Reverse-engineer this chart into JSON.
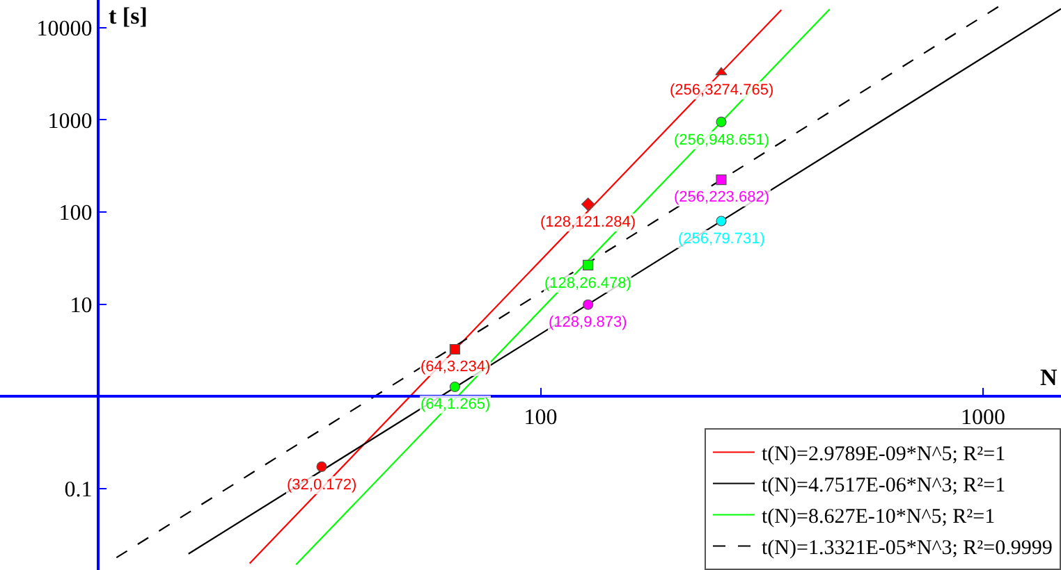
{
  "chart_data": {
    "type": "line",
    "xlabel": "N",
    "ylabel": "t [s]",
    "log": "xy",
    "xlim": [
      6,
      1500
    ],
    "ylim": [
      0.013,
      20000
    ],
    "xticks": [
      100,
      1000
    ],
    "yticks": [
      0.1,
      10,
      100,
      1000,
      10000
    ],
    "grid": false,
    "legend": "bottom right",
    "series": [
      {
        "name": "t(N)=2.9789E-09*N^5; R²=1",
        "color": "#ff0000",
        "line_style": "solid",
        "marker": "none",
        "x": [
          22,
          350
        ],
        "values": [
          0.01535,
          15645
        ]
      },
      {
        "name": "t(N)=4.7517E-06*N^3; R²=1",
        "color": "#000000",
        "line_style": "solid",
        "marker": "none",
        "x": [
          16,
          1500
        ],
        "values": [
          0.01946,
          16037
        ]
      },
      {
        "name": "t(N)=8.627E-10*N^5; R²=1",
        "color": "#00ff00",
        "line_style": "solid",
        "marker": "none",
        "x": [
          28,
          450
        ],
        "values": [
          0.01485,
          15919
        ]
      },
      {
        "name": "t(N)=1.3321E-05*N^3; R²=0.9999",
        "color": "#000000",
        "line_style": "dashed",
        "marker": "none",
        "x": [
          11,
          1100
        ],
        "values": [
          0.01773,
          17730
        ]
      },
      {
        "type": "scatter",
        "color": "#ff0000",
        "marker": "circle",
        "x": [
          32
        ],
        "values": [
          0.172
        ]
      },
      {
        "type": "scatter",
        "color": "#ff0000",
        "marker": "square",
        "x": [
          64
        ],
        "values": [
          3.234
        ]
      },
      {
        "type": "scatter",
        "color": "#ff0000",
        "marker": "diamond",
        "x": [
          128
        ],
        "values": [
          121.284
        ]
      },
      {
        "type": "scatter",
        "color": "#ff0000",
        "marker": "triangle",
        "x": [
          256
        ],
        "values": [
          3274.765
        ]
      },
      {
        "type": "scatter",
        "color": "#00ff00",
        "marker": "circle",
        "x": [
          64
        ],
        "values": [
          1.265
        ]
      },
      {
        "type": "scatter",
        "color": "#00ff00",
        "marker": "square",
        "x": [
          128
        ],
        "values": [
          26.478
        ]
      },
      {
        "type": "scatter",
        "color": "#00ff00",
        "marker": "circle",
        "x": [
          256
        ],
        "values": [
          948.651
        ]
      },
      {
        "type": "scatter",
        "color": "#ff00ff",
        "marker": "circle",
        "x": [
          128
        ],
        "values": [
          9.873
        ]
      },
      {
        "type": "scatter",
        "color": "#ff00ff",
        "marker": "square",
        "x": [
          256
        ],
        "values": [
          223.682
        ]
      },
      {
        "type": "scatter",
        "color": "#00ffff",
        "marker": "circle",
        "x": [
          256
        ],
        "values": [
          79.731
        ]
      }
    ],
    "annotations": [
      {
        "text": "(32,0.172)",
        "x": 32,
        "y": 0.172
      },
      {
        "text": "(64,3.234)",
        "x": 64,
        "y": 3.234
      },
      {
        "text": "(128,121.284)",
        "x": 128,
        "y": 121.284
      },
      {
        "text": "(256,3274.765)",
        "x": 256,
        "y": 3274.765
      },
      {
        "text": "(64,1.265)",
        "x": 64,
        "y": 1.265
      },
      {
        "text": "(128,26.478)",
        "x": 128,
        "y": 26.478
      },
      {
        "text": "(256,948.651)",
        "x": 256,
        "y": 948.651
      },
      {
        "text": "(128,9.873)",
        "x": 128,
        "y": 9.873
      },
      {
        "text": "(256,223.682)",
        "x": 256,
        "y": 223.682
      },
      {
        "text": "(256,79.731)",
        "x": 256,
        "y": 79.731
      }
    ]
  }
}
